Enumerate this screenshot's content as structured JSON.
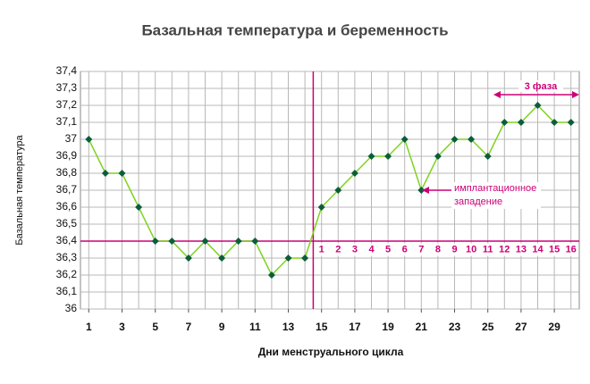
{
  "chart_data": {
    "type": "line",
    "title": "Базальная температура и беременность",
    "xlabel": "Дни менструального цикла",
    "ylabel": "Базальная температура",
    "x": [
      1,
      2,
      3,
      4,
      5,
      6,
      7,
      8,
      9,
      10,
      11,
      12,
      13,
      14,
      15,
      16,
      17,
      18,
      19,
      20,
      21,
      22,
      23,
      24,
      25,
      26,
      27,
      28,
      29,
      30
    ],
    "values": [
      37.0,
      36.8,
      36.8,
      36.6,
      36.4,
      36.4,
      36.3,
      36.4,
      36.3,
      36.4,
      36.4,
      36.2,
      36.3,
      36.3,
      36.6,
      36.7,
      36.8,
      36.9,
      36.9,
      37.0,
      36.7,
      36.9,
      37.0,
      37.0,
      36.9,
      37.1,
      37.1,
      37.2,
      37.1,
      37.1
    ],
    "line_color": "#7ed321",
    "marker_color": "#0b5e3a",
    "xlim": [
      0.5,
      30.5
    ],
    "xticks": [
      1,
      3,
      5,
      7,
      9,
      11,
      13,
      15,
      17,
      19,
      21,
      23,
      25,
      27,
      29
    ],
    "ylim": [
      36,
      37.4
    ],
    "yticks": [
      {
        "value": 36,
        "label": "36"
      },
      {
        "value": 36.1,
        "label": "36,1"
      },
      {
        "value": 36.2,
        "label": "36,2"
      },
      {
        "value": 36.3,
        "label": "36,3"
      },
      {
        "value": 36.4,
        "label": "36,4"
      },
      {
        "value": 36.5,
        "label": "36,5"
      },
      {
        "value": 36.6,
        "label": "36,6"
      },
      {
        "value": 36.7,
        "label": "36,7"
      },
      {
        "value": 36.8,
        "label": "36,8"
      },
      {
        "value": 36.9,
        "label": "36,9"
      },
      {
        "value": 37,
        "label": "37"
      },
      {
        "value": 37.1,
        "label": "37,1"
      },
      {
        "value": 37.2,
        "label": "37,2"
      },
      {
        "value": 37.3,
        "label": "37,3"
      },
      {
        "value": 37.4,
        "label": "37,4"
      }
    ],
    "grid": true,
    "hline": 36.4,
    "vline": 14.5,
    "ref_color": "#cc0077",
    "phase_labels": [
      "1",
      "2",
      "3",
      "4",
      "5",
      "6",
      "7",
      "8",
      "9",
      "10",
      "11",
      "12",
      "13",
      "14",
      "15",
      "16"
    ],
    "phase_note": "3 фаза",
    "implant_note": [
      "имплантационное",
      "западение"
    ]
  }
}
